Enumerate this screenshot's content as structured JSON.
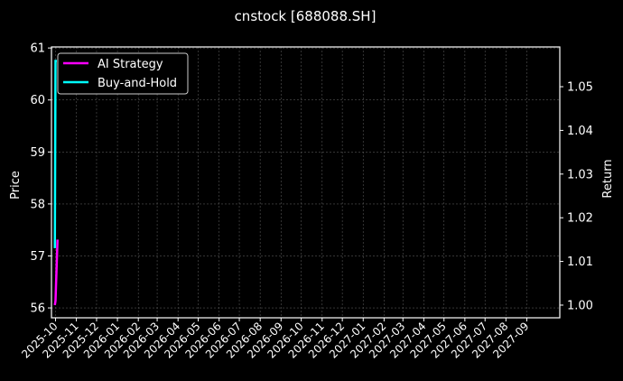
{
  "chart_data": {
    "type": "line",
    "title": "cnstock [688088.SH]",
    "ylabel_left": "Price",
    "ylabel_right": "Return",
    "xlabel": "",
    "x_ticks": [
      "2025-10",
      "2025-11",
      "2025-12",
      "2026-01",
      "2026-02",
      "2026-03",
      "2026-04",
      "2026-05",
      "2026-06",
      "2026-07",
      "2026-08",
      "2026-09",
      "2026-10",
      "2026-11",
      "2026-12",
      "2027-01",
      "2027-02",
      "2027-03",
      "2027-04",
      "2027-05",
      "2027-06",
      "2027-07",
      "2027-08",
      "2027-09"
    ],
    "y_left_ticks": [
      56,
      57,
      58,
      59,
      60,
      61
    ],
    "y_right_ticks": [
      "1.00",
      "1.01",
      "1.02",
      "1.03",
      "1.04",
      "1.05"
    ],
    "ylim_left": [
      55.81,
      61.02
    ],
    "ylim_right": [
      0.9971,
      1.0591
    ],
    "grid": true,
    "legend": "upper-left",
    "series": [
      {
        "name": "AI Strategy",
        "color": "#ff00ff",
        "axis": "right",
        "x": [
          "2025-09-30",
          "2025-10-01",
          "2025-10-04"
        ],
        "values": [
          1.0,
          1.001,
          1.015
        ]
      },
      {
        "name": "Buy-and-Hold",
        "color": "#00ffff",
        "axis": "left",
        "x": [
          "2025-09-30",
          "2025-10-01",
          "2025-10-03"
        ],
        "values": [
          57.15,
          60.75,
          60.75
        ]
      }
    ]
  }
}
